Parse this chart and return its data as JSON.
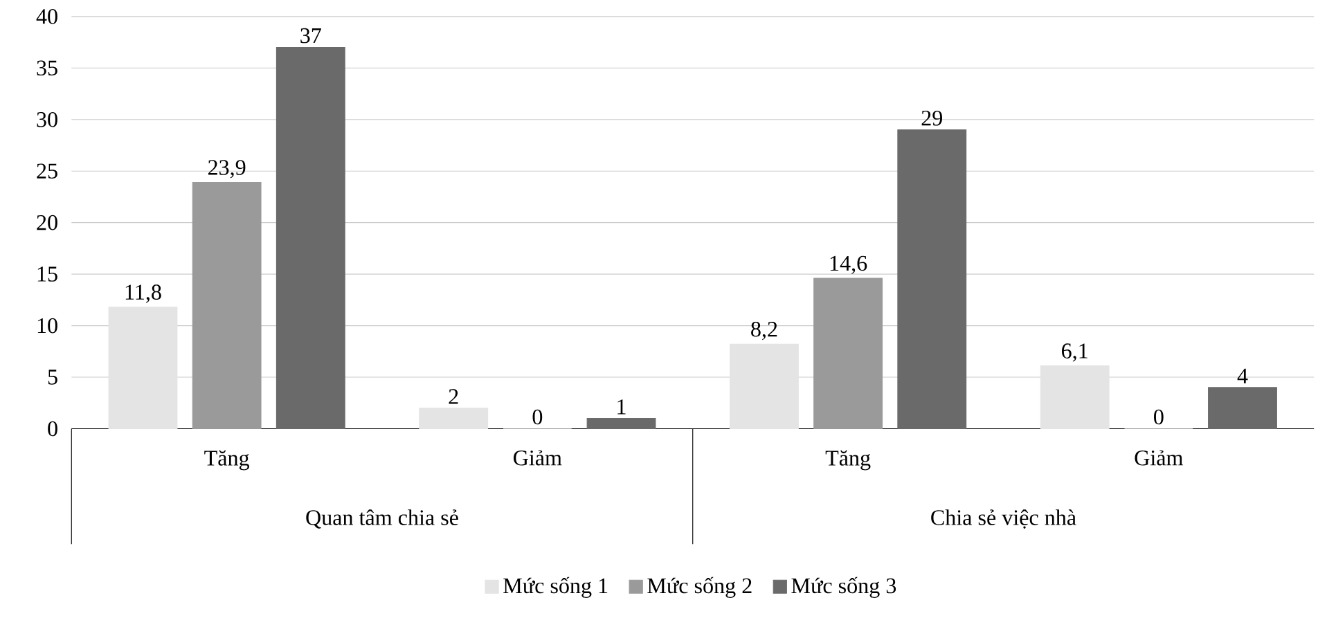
{
  "chart_data": {
    "type": "bar",
    "categories": [
      "Tăng",
      "Giảm",
      "Tăng",
      "Giảm"
    ],
    "series": [
      {
        "name": "Mức sống 1",
        "color": "#e4e4e4",
        "values": [
          11.8,
          2,
          8.2,
          6.1
        ],
        "value_labels": [
          "11,8",
          "2",
          "8,2",
          "6,1"
        ]
      },
      {
        "name": "Mức sống 2",
        "color": "#9a9a9a",
        "values": [
          23.9,
          0,
          14.6,
          0
        ],
        "value_labels": [
          "23,9",
          "0",
          "14,6",
          "0"
        ]
      },
      {
        "name": "Mức sống 3",
        "color": "#6a6a6a",
        "values": [
          37,
          1,
          29,
          4
        ],
        "value_labels": [
          "37",
          "1",
          "29",
          "4"
        ]
      }
    ],
    "annotations": [
      "Quan tâm chia sẻ",
      "Chia sẻ việc nhà"
    ],
    "ylim": [
      0,
      40
    ],
    "yticks": [
      0,
      5,
      10,
      15,
      20,
      25,
      30,
      35,
      40
    ],
    "grid": "y",
    "legend": "bottom"
  }
}
